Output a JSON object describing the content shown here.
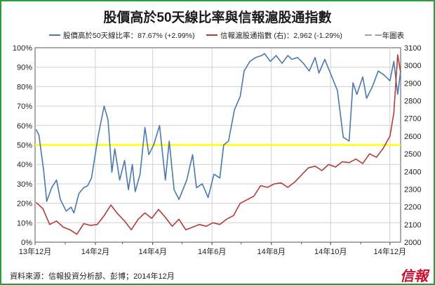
{
  "chart_data": {
    "type": "line",
    "title": "股價高於50天線比率與信報滬股通指數",
    "legend": {
      "placement": "top",
      "entries": [
        {
          "label": "股價高於50天線比率：87.67% (+2.99%)",
          "color": "#4a78b0"
        },
        {
          "label": "信報滬股通指數 (右)：2,962 (-1.29%)",
          "color": "#b53a3a"
        },
        {
          "label": "一年圖表",
          "color": ""
        }
      ]
    },
    "x_ticks": [
      "13年12月",
      "14年2月",
      "14年4月",
      "14年6月",
      "14年8月",
      "14年10月",
      "14年12月"
    ],
    "y_left": {
      "min": 0,
      "max": 100,
      "ticks": [
        "0%",
        "10%",
        "20%",
        "30%",
        "40%",
        "50%",
        "60%",
        "70%",
        "80%",
        "90%",
        "100%"
      ]
    },
    "y_right": {
      "min": 2000,
      "max": 3100,
      "ticks": [
        "2000",
        "2100",
        "2200",
        "2300",
        "2400",
        "2500",
        "2600",
        "2700",
        "2800",
        "2900",
        "3000",
        "3100"
      ]
    },
    "reference_line": {
      "value": 50,
      "axis": "left",
      "color": "#ffff00"
    },
    "grid": true,
    "series": [
      {
        "name": "股價高於50天線比率",
        "axis": "left",
        "color": "#4a78b0",
        "x": [
          "2013-12-02",
          "2013-12-05",
          "2013-12-10",
          "2013-12-13",
          "2013-12-18",
          "2013-12-23",
          "2013-12-27",
          "2014-01-02",
          "2014-01-07",
          "2014-01-10",
          "2014-01-15",
          "2014-01-20",
          "2014-01-24",
          "2014-01-28",
          "2014-02-04",
          "2014-02-10",
          "2014-02-14",
          "2014-02-18",
          "2014-02-21",
          "2014-02-26",
          "2014-03-03",
          "2014-03-07",
          "2014-03-11",
          "2014-03-14",
          "2014-03-19",
          "2014-03-24",
          "2014-03-28",
          "2014-04-02",
          "2014-04-08",
          "2014-04-14",
          "2014-04-18",
          "2014-04-23",
          "2014-04-28",
          "2014-05-06",
          "2014-05-12",
          "2014-05-16",
          "2014-05-22",
          "2014-05-28",
          "2014-06-03",
          "2014-06-09",
          "2014-06-13",
          "2014-06-18",
          "2014-06-24",
          "2014-06-30",
          "2014-07-04",
          "2014-07-10",
          "2014-07-16",
          "2014-07-22",
          "2014-07-25",
          "2014-07-31",
          "2014-08-06",
          "2014-08-12",
          "2014-08-18",
          "2014-08-22",
          "2014-08-28",
          "2014-09-03",
          "2014-09-09",
          "2014-09-15",
          "2014-09-19",
          "2014-09-25",
          "2014-10-08",
          "2014-10-14",
          "2014-10-20",
          "2014-10-24",
          "2014-10-28",
          "2014-11-03",
          "2014-11-07",
          "2014-11-13",
          "2014-11-19",
          "2014-11-25",
          "2014-12-01",
          "2014-12-05",
          "2014-12-09",
          "2014-12-12"
        ],
        "values": [
          58,
          55,
          36,
          21,
          28,
          32,
          22,
          16,
          18,
          15,
          25,
          28,
          29,
          33,
          55,
          70,
          63,
          36,
          48,
          32,
          42,
          27,
          40,
          26,
          35,
          59,
          45,
          50,
          60,
          32,
          52,
          27,
          22,
          32,
          45,
          28,
          30,
          23,
          35,
          33,
          50,
          52,
          68,
          75,
          88,
          93,
          95,
          96,
          97,
          93,
          96,
          92,
          96,
          94,
          95,
          92,
          88,
          95,
          87,
          94,
          78,
          54,
          52,
          82,
          76,
          85,
          74,
          80,
          88,
          86,
          83,
          93,
          76,
          88
        ]
      },
      {
        "name": "信報滬股通指數",
        "axis": "right",
        "color": "#b53a3a",
        "x": [
          "2013-12-02",
          "2013-12-09",
          "2013-12-16",
          "2013-12-23",
          "2013-12-30",
          "2014-01-06",
          "2014-01-13",
          "2014-01-20",
          "2014-01-27",
          "2014-02-03",
          "2014-02-10",
          "2014-02-17",
          "2014-02-24",
          "2014-03-03",
          "2014-03-10",
          "2014-03-17",
          "2014-03-24",
          "2014-03-31",
          "2014-04-07",
          "2014-04-14",
          "2014-04-21",
          "2014-04-28",
          "2014-05-05",
          "2014-05-12",
          "2014-05-19",
          "2014-05-26",
          "2014-06-02",
          "2014-06-09",
          "2014-06-16",
          "2014-06-23",
          "2014-06-30",
          "2014-07-07",
          "2014-07-14",
          "2014-07-21",
          "2014-07-28",
          "2014-08-04",
          "2014-08-11",
          "2014-08-18",
          "2014-08-25",
          "2014-09-01",
          "2014-09-08",
          "2014-09-15",
          "2014-09-22",
          "2014-09-29",
          "2014-10-06",
          "2014-10-13",
          "2014-10-20",
          "2014-10-27",
          "2014-11-03",
          "2014-11-10",
          "2014-11-17",
          "2014-11-24",
          "2014-12-01",
          "2014-12-05",
          "2014-12-09",
          "2014-12-12"
        ],
        "values": [
          2225,
          2190,
          2100,
          2120,
          2085,
          2070,
          2045,
          2105,
          2095,
          2100,
          2150,
          2210,
          2160,
          2120,
          2070,
          2130,
          2165,
          2135,
          2185,
          2140,
          2090,
          2130,
          2070,
          2085,
          2100,
          2090,
          2110,
          2100,
          2130,
          2150,
          2220,
          2240,
          2260,
          2320,
          2310,
          2330,
          2335,
          2310,
          2340,
          2380,
          2420,
          2430,
          2405,
          2440,
          2425,
          2455,
          2450,
          2470,
          2445,
          2500,
          2480,
          2530,
          2600,
          2730,
          3060,
          2962
        ]
      }
    ]
  },
  "source_text": "資料來源：信報投資分析部、彭博；2014年12月",
  "logo_text": "信報"
}
